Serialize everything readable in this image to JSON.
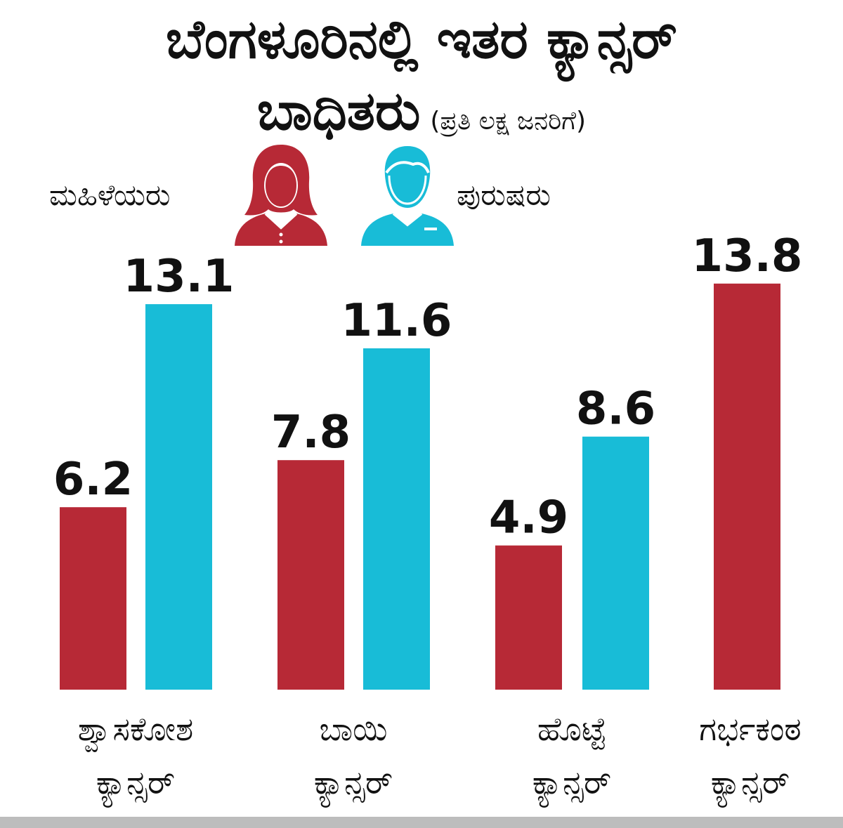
{
  "title_line1": "ಬೆಂಗಳೂರಿನಲ್ಲಿ ಇತರ ಕ್ಯಾನ್ಸರ್",
  "title_line2": "ಬಾಧಿತರು",
  "subtitle": "(ಪ್ರತಿ ಲಕ್ಷ ಜನರಿಗೆ)",
  "colors": {
    "women": "#b72936",
    "men": "#18bcd7",
    "text": "#111111"
  },
  "legend": {
    "women": {
      "label": "ಮಹಿಳೆಯರು",
      "icon": "woman-icon"
    },
    "men": {
      "label": "ಪುರುಷರು",
      "icon": "man-icon"
    }
  },
  "chart_data": {
    "type": "bar",
    "categories": [
      "ಶ್ವಾಸಕೋಶ\nಕ್ಯಾನ್ಸರ್",
      "ಬಾಯಿ\nಕ್ಯಾನ್ಸರ್",
      "ಹೊಟ್ಟೆ\nಕ್ಯಾನ್ಸರ್",
      "ಗರ್ಭಕಂಠ\nಕ್ಯಾನ್ಸರ್"
    ],
    "series": [
      {
        "name": "ಮಹಿಳೆಯರು",
        "values": [
          6.2,
          7.8,
          4.9,
          13.8
        ],
        "labels": [
          "6.2",
          "7.8",
          "4.9",
          "13.8"
        ]
      },
      {
        "name": "ಪುರುಷರು",
        "values": [
          13.1,
          11.6,
          8.6,
          null
        ],
        "labels": [
          "13.1",
          "11.6",
          "8.6",
          ""
        ]
      }
    ],
    "ylim": [
      0,
      14.5
    ],
    "grid": false,
    "legend_position": "top"
  }
}
